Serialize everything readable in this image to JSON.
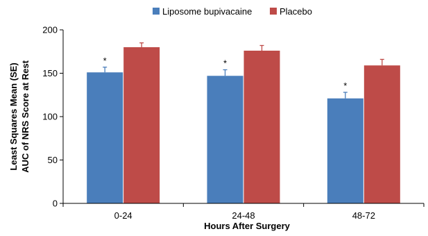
{
  "chart_data": {
    "type": "bar",
    "categories": [
      "0-24",
      "24-48",
      "48-72"
    ],
    "series": [
      {
        "name": "Liposome bupivacaine",
        "values": [
          151,
          147,
          121
        ],
        "errors": [
          6,
          7,
          7
        ],
        "color": "#4a7ebb",
        "markers": [
          "*",
          "*",
          "*"
        ]
      },
      {
        "name": "Placebo",
        "values": [
          180,
          176,
          159
        ],
        "errors": [
          5,
          6,
          7
        ],
        "color": "#be4b48"
      }
    ],
    "title": "",
    "xlabel": "Hours After Surgery",
    "ylabel_lines": [
      "Least Squares Mean (SE)",
      "AUC of NRS Score at Rest"
    ],
    "ylim": [
      0,
      200
    ],
    "yticks": [
      "0",
      "50",
      "100",
      "150",
      "200"
    ],
    "grid": false,
    "legend_position": "top-center"
  }
}
